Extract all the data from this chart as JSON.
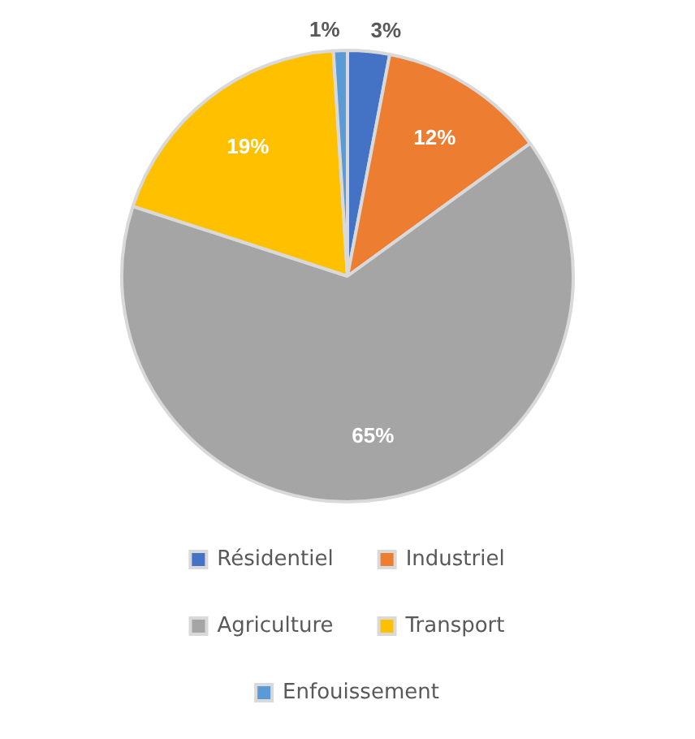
{
  "chart_data": {
    "type": "pie",
    "categories": [
      "Résidentiel",
      "Industriel",
      "Agriculture",
      "Transport",
      "Enfouissement"
    ],
    "values": [
      3,
      12,
      65,
      19,
      1
    ],
    "colors": [
      "#4472c4",
      "#ed7d31",
      "#a5a5a5",
      "#ffc000",
      "#5b9bd5"
    ],
    "value_labels": [
      "3%",
      "12%",
      "65%",
      "19%",
      "1%"
    ],
    "legend": "bottom"
  }
}
